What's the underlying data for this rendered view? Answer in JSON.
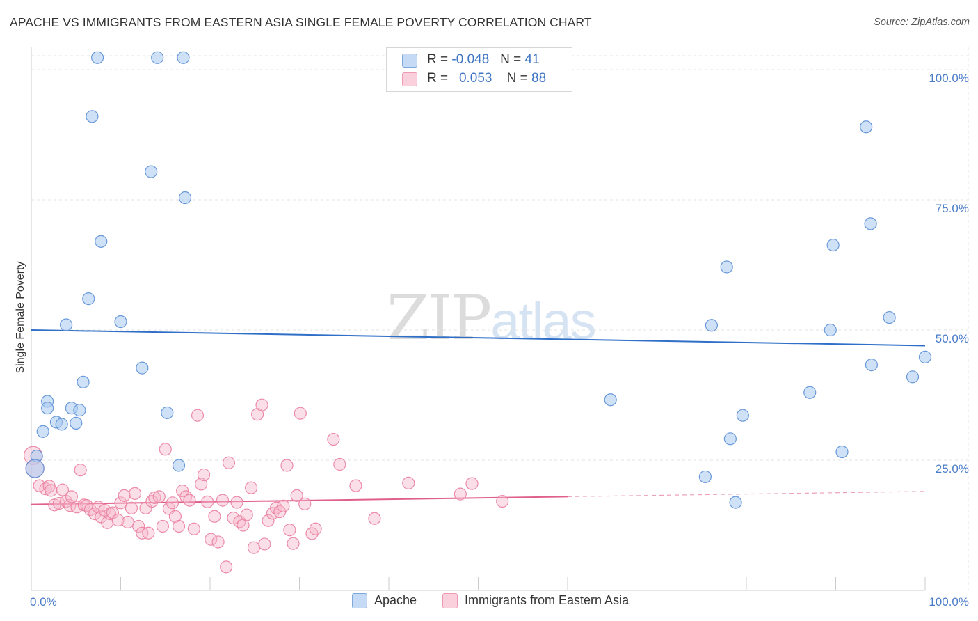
{
  "header": {
    "title": "APACHE VS IMMIGRANTS FROM EASTERN ASIA SINGLE FEMALE POVERTY CORRELATION CHART",
    "source": "Source: ZipAtlas.com"
  },
  "watermark": {
    "zip": "ZIP",
    "atlas": "atlas"
  },
  "legend": {
    "rows": [
      {
        "r_label": "R =",
        "r_value": "-0.048",
        "n_label": "N =",
        "n_value": "41",
        "color": "#a8c8f0"
      },
      {
        "r_label": "R =",
        "r_value": "0.053",
        "n_label": "N =",
        "n_value": "88",
        "color": "#f7b8cb"
      }
    ]
  },
  "bottom_legend": {
    "items": [
      {
        "label": "Apache",
        "color": "#a8c8f0"
      },
      {
        "label": "Immigrants from Eastern Asia",
        "color": "#f7b8cb"
      }
    ]
  },
  "chart_data": {
    "type": "scatter",
    "title": "APACHE VS IMMIGRANTS FROM EASTERN ASIA SINGLE FEMALE POVERTY CORRELATION CHART",
    "xlabel": "",
    "ylabel": "Single Female Poverty",
    "xlim": [
      0,
      100
    ],
    "ylim": [
      0,
      100
    ],
    "x_ticks": [
      {
        "value": 0,
        "label": "0.0%"
      },
      {
        "value": 100,
        "label": "100.0%"
      }
    ],
    "y_ticks": [
      {
        "value": 25,
        "label": "25.0%"
      },
      {
        "value": 50,
        "label": "50.0%"
      },
      {
        "value": 75,
        "label": "75.0%"
      },
      {
        "value": 100,
        "label": "100.0%"
      }
    ],
    "grid": true,
    "legend_position": "top-center",
    "series": [
      {
        "name": "Apache",
        "color": "#a8c8f0",
        "stroke": "#5b8fd6",
        "trend_color": "#2f6fc8",
        "trend": {
          "x": [
            0,
            100
          ],
          "y": [
            50.0,
            47.0
          ]
        },
        "points": [
          [
            7.4,
            102.3
          ],
          [
            14.1,
            102.3
          ],
          [
            17.0,
            102.3
          ],
          [
            6.8,
            91.0
          ],
          [
            13.4,
            80.4
          ],
          [
            17.2,
            75.4
          ],
          [
            7.8,
            67.0
          ],
          [
            6.4,
            56.0
          ],
          [
            3.9,
            51.0
          ],
          [
            10.0,
            51.6
          ],
          [
            12.4,
            42.7
          ],
          [
            5.8,
            40.0
          ],
          [
            1.8,
            36.3
          ],
          [
            1.8,
            35.0
          ],
          [
            4.5,
            35.0
          ],
          [
            5.4,
            34.6
          ],
          [
            2.8,
            32.3
          ],
          [
            3.4,
            31.9
          ],
          [
            5.0,
            32.1
          ],
          [
            1.3,
            30.5
          ],
          [
            15.2,
            34.1
          ],
          [
            16.5,
            24.0
          ],
          [
            0.6,
            25.8
          ],
          [
            0.4,
            23.4
          ],
          [
            64.8,
            36.6
          ],
          [
            77.8,
            62.1
          ],
          [
            93.4,
            89.0
          ],
          [
            89.7,
            66.3
          ],
          [
            93.9,
            70.4
          ],
          [
            79.6,
            33.6
          ],
          [
            78.2,
            29.1
          ],
          [
            87.1,
            38.0
          ],
          [
            89.4,
            50.0
          ],
          [
            94.0,
            43.3
          ],
          [
            96.0,
            52.4
          ],
          [
            98.6,
            41.0
          ],
          [
            100.0,
            44.8
          ],
          [
            90.7,
            26.6
          ],
          [
            76.1,
            50.9
          ],
          [
            75.4,
            21.8
          ],
          [
            78.8,
            16.9
          ]
        ]
      },
      {
        "name": "Immigrants from Eastern Asia",
        "color": "#f7b8cb",
        "stroke": "#ea7fa0",
        "trend_color": "#e0608d",
        "trend": {
          "x": [
            0,
            60
          ],
          "y": [
            16.5,
            18.0
          ]
        },
        "trend_dashed": {
          "x": [
            60,
            100
          ],
          "y": [
            18.0,
            19.0
          ]
        },
        "points": [
          [
            0.2,
            25.9
          ],
          [
            0.4,
            23.4
          ],
          [
            0.9,
            20.1
          ],
          [
            1.6,
            19.5
          ],
          [
            2.0,
            20.0
          ],
          [
            2.2,
            19.2
          ],
          [
            2.6,
            16.4
          ],
          [
            3.1,
            16.7
          ],
          [
            3.5,
            19.3
          ],
          [
            3.9,
            17.1
          ],
          [
            4.3,
            16.3
          ],
          [
            4.5,
            18.0
          ],
          [
            5.1,
            16.0
          ],
          [
            5.5,
            23.1
          ],
          [
            5.9,
            16.4
          ],
          [
            6.2,
            16.3
          ],
          [
            6.6,
            15.5
          ],
          [
            7.1,
            14.7
          ],
          [
            7.5,
            16.0
          ],
          [
            7.8,
            14.1
          ],
          [
            8.2,
            15.4
          ],
          [
            8.5,
            13.0
          ],
          [
            8.8,
            14.7
          ],
          [
            9.1,
            14.9
          ],
          [
            9.7,
            13.5
          ],
          [
            10.0,
            16.8
          ],
          [
            10.4,
            18.2
          ],
          [
            10.8,
            13.1
          ],
          [
            11.2,
            15.8
          ],
          [
            11.6,
            18.6
          ],
          [
            12.0,
            12.3
          ],
          [
            12.4,
            11.0
          ],
          [
            12.8,
            15.8
          ],
          [
            13.1,
            11.0
          ],
          [
            13.5,
            17.1
          ],
          [
            13.8,
            17.8
          ],
          [
            14.3,
            18.0
          ],
          [
            14.7,
            12.3
          ],
          [
            15.0,
            27.1
          ],
          [
            15.4,
            15.7
          ],
          [
            15.8,
            16.8
          ],
          [
            16.1,
            14.2
          ],
          [
            16.5,
            12.3
          ],
          [
            16.9,
            19.1
          ],
          [
            17.3,
            18.0
          ],
          [
            17.7,
            17.3
          ],
          [
            18.2,
            11.8
          ],
          [
            18.6,
            33.6
          ],
          [
            19.0,
            20.4
          ],
          [
            19.3,
            22.2
          ],
          [
            19.7,
            17.0
          ],
          [
            20.1,
            9.8
          ],
          [
            20.5,
            14.2
          ],
          [
            20.9,
            9.3
          ],
          [
            21.4,
            17.3
          ],
          [
            21.8,
            4.5
          ],
          [
            22.1,
            24.5
          ],
          [
            22.6,
            13.9
          ],
          [
            23.0,
            16.9
          ],
          [
            23.3,
            13.2
          ],
          [
            23.7,
            12.5
          ],
          [
            24.1,
            14.5
          ],
          [
            24.6,
            19.7
          ],
          [
            24.9,
            8.2
          ],
          [
            25.3,
            33.8
          ],
          [
            25.8,
            35.6
          ],
          [
            26.1,
            8.9
          ],
          [
            26.5,
            13.4
          ],
          [
            27.0,
            14.8
          ],
          [
            27.4,
            15.8
          ],
          [
            27.8,
            15.1
          ],
          [
            28.2,
            16.2
          ],
          [
            28.6,
            24.0
          ],
          [
            28.9,
            11.6
          ],
          [
            29.3,
            9.0
          ],
          [
            29.7,
            18.2
          ],
          [
            30.1,
            34.0
          ],
          [
            30.6,
            16.6
          ],
          [
            31.4,
            10.9
          ],
          [
            31.8,
            11.8
          ],
          [
            33.8,
            29.0
          ],
          [
            34.5,
            24.2
          ],
          [
            36.3,
            20.1
          ],
          [
            38.4,
            13.8
          ],
          [
            42.2,
            20.6
          ],
          [
            48.0,
            18.5
          ],
          [
            49.3,
            20.5
          ],
          [
            52.7,
            17.1
          ]
        ]
      }
    ]
  }
}
